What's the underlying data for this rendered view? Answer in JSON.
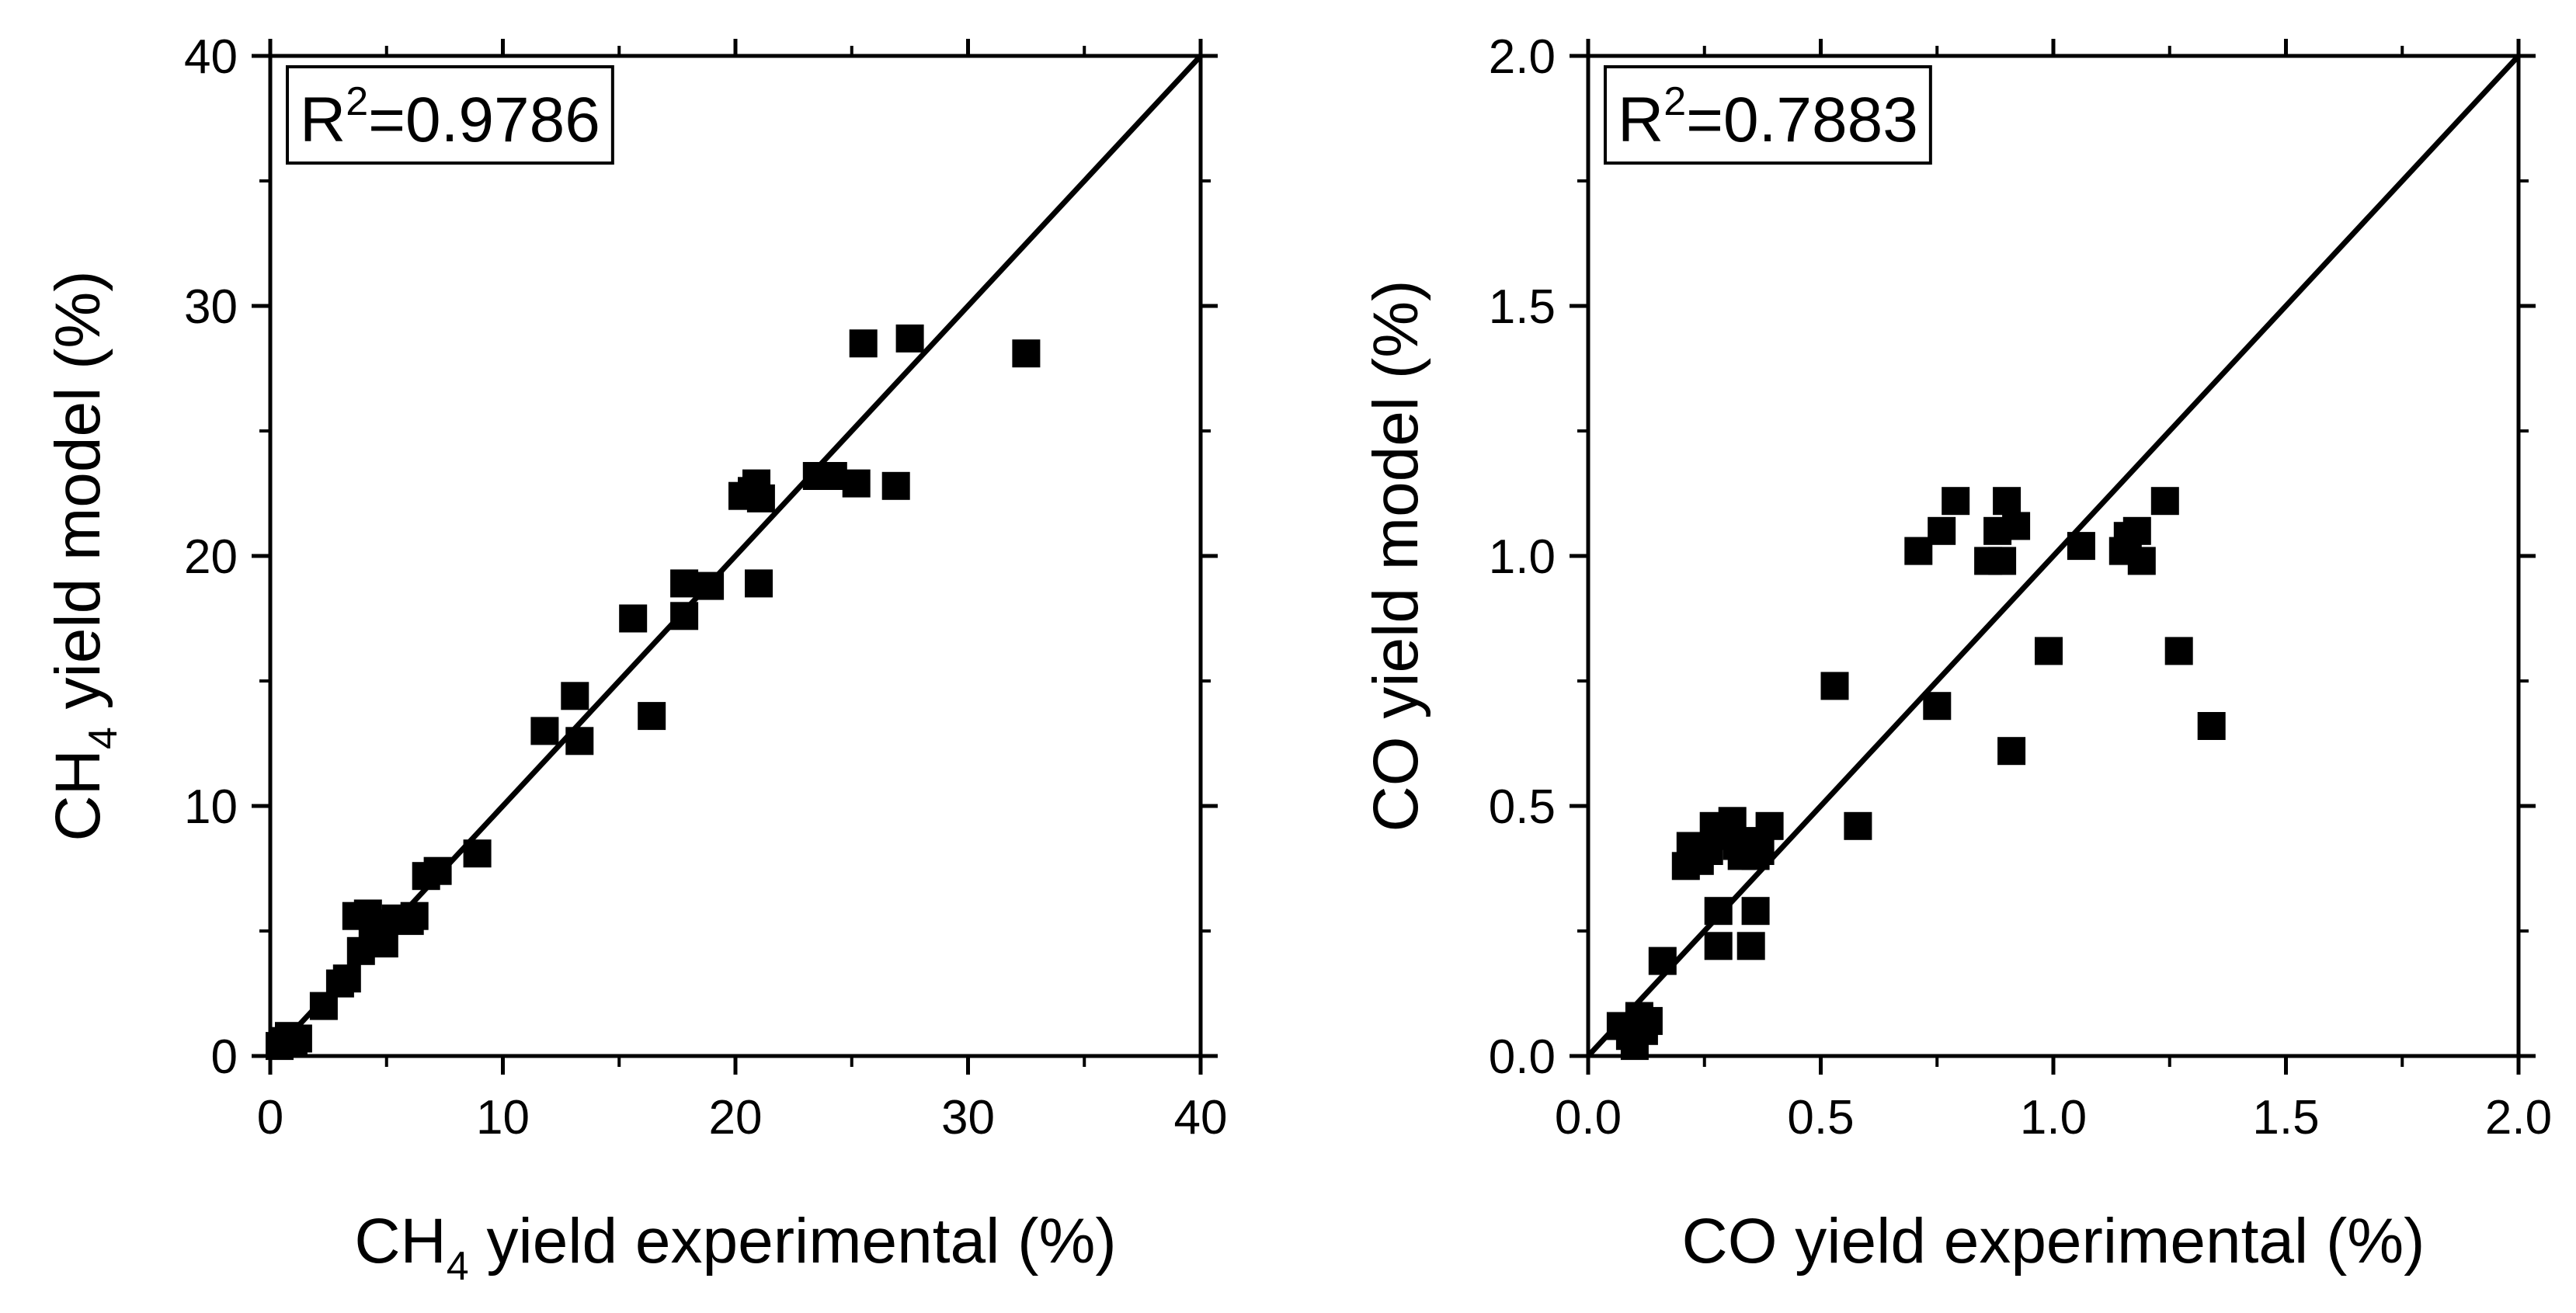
{
  "chart_data": [
    {
      "type": "scatter",
      "xlabel": {
        "main": "CH",
        "sub": "4",
        "rest": " yield experimental (%)"
      },
      "ylabel": {
        "main": "CH",
        "sub": "4",
        "rest": " yield model (%)"
      },
      "xlim": [
        0,
        40
      ],
      "ylim": [
        0,
        40
      ],
      "xticks": [
        "0",
        "10",
        "20",
        "30",
        "40"
      ],
      "yticks": [
        "0",
        "10",
        "20",
        "30",
        "40"
      ],
      "annotation": {
        "base": "R",
        "sup": "2",
        "value": "=0.9786"
      },
      "line": [
        [
          0,
          0
        ],
        [
          40,
          40
        ]
      ],
      "marker_color": "#000000",
      "points": [
        [
          0.4,
          0.4
        ],
        [
          0.6,
          0.6
        ],
        [
          0.8,
          0.8
        ],
        [
          1.0,
          0.5
        ],
        [
          1.2,
          0.7
        ],
        [
          2.3,
          2.0
        ],
        [
          3.0,
          2.9
        ],
        [
          3.3,
          3.1
        ],
        [
          3.7,
          5.6
        ],
        [
          4.2,
          5.7
        ],
        [
          3.9,
          4.2
        ],
        [
          4.4,
          4.8
        ],
        [
          4.9,
          4.5
        ],
        [
          4.6,
          5.3
        ],
        [
          5.4,
          5.5
        ],
        [
          6.2,
          5.6
        ],
        [
          6.0,
          5.4
        ],
        [
          6.7,
          7.2
        ],
        [
          7.2,
          7.4
        ],
        [
          8.9,
          8.1
        ],
        [
          11.8,
          13.0
        ],
        [
          13.1,
          14.4
        ],
        [
          13.3,
          12.6
        ],
        [
          15.6,
          17.5
        ],
        [
          16.4,
          13.6
        ],
        [
          17.8,
          18.9
        ],
        [
          17.8,
          17.6
        ],
        [
          18.9,
          18.8
        ],
        [
          20.3,
          22.4
        ],
        [
          20.7,
          22.6
        ],
        [
          20.9,
          22.9
        ],
        [
          21.1,
          22.3
        ],
        [
          21.0,
          18.9
        ],
        [
          23.5,
          23.2
        ],
        [
          24.2,
          23.2
        ],
        [
          25.2,
          22.9
        ],
        [
          26.9,
          22.8
        ],
        [
          25.5,
          28.5
        ],
        [
          27.5,
          28.7
        ],
        [
          32.5,
          28.1
        ]
      ]
    },
    {
      "type": "scatter",
      "xlabel": {
        "main": "CO yield experimental (%)"
      },
      "ylabel": {
        "main": "CO yield model (%)"
      },
      "xlim": [
        0,
        2
      ],
      "ylim": [
        0,
        2
      ],
      "xticks": [
        "0.0",
        "0.5",
        "1.0",
        "1.5",
        "2.0"
      ],
      "yticks": [
        "0.0",
        "0.5",
        "1.0",
        "1.5",
        "2.0"
      ],
      "annotation": {
        "base": "R",
        "sup": "2",
        "value": "=0.7883"
      },
      "line": [
        [
          0,
          0
        ],
        [
          2,
          2
        ]
      ],
      "marker_color": "#000000",
      "points": [
        [
          0.07,
          0.06
        ],
        [
          0.09,
          0.04
        ],
        [
          0.1,
          0.02
        ],
        [
          0.11,
          0.08
        ],
        [
          0.12,
          0.05
        ],
        [
          0.13,
          0.07
        ],
        [
          0.16,
          0.19
        ],
        [
          0.21,
          0.38
        ],
        [
          0.22,
          0.42
        ],
        [
          0.24,
          0.39
        ],
        [
          0.26,
          0.41
        ],
        [
          0.27,
          0.46
        ],
        [
          0.28,
          0.22
        ],
        [
          0.28,
          0.29
        ],
        [
          0.3,
          0.44
        ],
        [
          0.31,
          0.47
        ],
        [
          0.32,
          0.42
        ],
        [
          0.33,
          0.4
        ],
        [
          0.34,
          0.43
        ],
        [
          0.35,
          0.22
        ],
        [
          0.36,
          0.29
        ],
        [
          0.36,
          0.4
        ],
        [
          0.37,
          0.41
        ],
        [
          0.39,
          0.46
        ],
        [
          0.53,
          0.74
        ],
        [
          0.58,
          0.46
        ],
        [
          0.71,
          1.01
        ],
        [
          0.75,
          0.7
        ],
        [
          0.76,
          1.05
        ],
        [
          0.79,
          1.11
        ],
        [
          0.86,
          0.99
        ],
        [
          0.88,
          1.05
        ],
        [
          0.89,
          0.99
        ],
        [
          0.9,
          1.11
        ],
        [
          0.91,
          0.61
        ],
        [
          0.92,
          1.06
        ],
        [
          0.99,
          0.81
        ],
        [
          1.06,
          1.02
        ],
        [
          1.15,
          1.01
        ],
        [
          1.16,
          1.04
        ],
        [
          1.18,
          1.05
        ],
        [
          1.19,
          0.99
        ],
        [
          1.24,
          1.11
        ],
        [
          1.27,
          0.81
        ],
        [
          1.34,
          0.66
        ]
      ]
    }
  ]
}
